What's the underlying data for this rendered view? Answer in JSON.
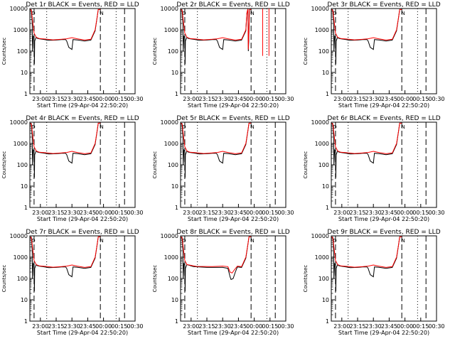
{
  "chart_data": [
    {
      "title": "Det 1r BLACK = Events, RED = LLD",
      "variant": "normal"
    },
    {
      "title": "Det 2r BLACK = Events, RED = LLD",
      "variant": "spike"
    },
    {
      "title": "Det 3r BLACK = Events, RED = LLD",
      "variant": "normal"
    },
    {
      "title": "Det 4r BLACK = Events, RED = LLD",
      "variant": "normal"
    },
    {
      "title": "Det 5r BLACK = Events, RED = LLD",
      "variant": "normal"
    },
    {
      "title": "Det 6r BLACK = Events, RED = LLD",
      "variant": "normal"
    },
    {
      "title": "Det 7r BLACK = Events, RED = LLD",
      "variant": "normal"
    },
    {
      "title": "Det 8r BLACK = Events, RED = LLD",
      "variant": "dip"
    },
    {
      "title": "Det 9r BLACK = Events, RED = LLD",
      "variant": "normal"
    }
  ],
  "shared": {
    "type": "line",
    "xlabel": "Start Time (29-Apr-04 22:50:20)",
    "ylabel": "Counts/sec",
    "yscale": "log",
    "ylim": [
      1,
      10000
    ],
    "y_ticks": [
      "1",
      "10",
      "100",
      "1000",
      "10000"
    ],
    "x_ticks": [
      "23:00",
      "23:15",
      "23:30",
      "23:45",
      "00:00",
      "00:15",
      "00:30"
    ],
    "x_tick_minutes": [
      10,
      25,
      40,
      55,
      70,
      85,
      100
    ],
    "xlim_minutes": [
      0,
      100
    ],
    "series": [
      {
        "name": "Events",
        "color": "#000000"
      },
      {
        "name": "LLD",
        "color": "#ff0000"
      }
    ],
    "event_curve": [
      [
        0.5,
        9000
      ],
      [
        1.5,
        8000
      ],
      [
        2.2,
        2000
      ],
      [
        2.5,
        100
      ],
      [
        3,
        300
      ],
      [
        3.2,
        500
      ],
      [
        4,
        450
      ],
      [
        4.3,
        25
      ],
      [
        4.6,
        300
      ],
      [
        6,
        450
      ],
      [
        7,
        400
      ],
      [
        9,
        380
      ],
      [
        12,
        360
      ],
      [
        18,
        320
      ],
      [
        25,
        330
      ],
      [
        30,
        350
      ],
      [
        34,
        350
      ],
      [
        35,
        300
      ],
      [
        37,
        150
      ],
      [
        40,
        120
      ],
      [
        41,
        350
      ],
      [
        46,
        330
      ],
      [
        52,
        300
      ],
      [
        58,
        330
      ],
      [
        62,
        900
      ],
      [
        64,
        4000
      ],
      [
        65,
        9000
      ],
      [
        66,
        9000
      ],
      [
        67,
        9000
      ]
    ],
    "lld_curve": [
      [
        0.5,
        9000
      ],
      [
        1.5,
        8000
      ],
      [
        2.5,
        3000
      ],
      [
        4,
        700
      ],
      [
        6,
        450
      ],
      [
        9,
        390
      ],
      [
        15,
        370
      ],
      [
        22,
        340
      ],
      [
        30,
        360
      ],
      [
        35,
        380
      ],
      [
        40,
        430
      ],
      [
        45,
        380
      ],
      [
        52,
        330
      ],
      [
        58,
        360
      ],
      [
        62,
        1000
      ],
      [
        64,
        4000
      ],
      [
        65,
        9000
      ],
      [
        66,
        9000
      ],
      [
        67,
        9000
      ]
    ],
    "spike_event_curve": [
      [
        62,
        900
      ],
      [
        63,
        6000
      ],
      [
        64,
        9500
      ],
      [
        64.4,
        100
      ],
      [
        64.8,
        300
      ],
      [
        65.5,
        9000
      ],
      [
        67,
        9000
      ]
    ],
    "spike_lld_curve": [
      [
        62,
        1000
      ],
      [
        63,
        6000
      ],
      [
        64,
        9500
      ],
      [
        64.4,
        120
      ],
      [
        64.8,
        500
      ],
      [
        65.5,
        9000
      ],
      [
        67,
        9000
      ]
    ],
    "spike_extra_red": [
      [
        78,
        10000
      ],
      [
        78,
        60
      ],
      [
        84,
        10000
      ],
      [
        84,
        60
      ]
    ],
    "dip_event_curve": [
      [
        0.5,
        9000
      ],
      [
        1.5,
        8000
      ],
      [
        2.2,
        2000
      ],
      [
        2.5,
        100
      ],
      [
        3,
        300
      ],
      [
        3.2,
        500
      ],
      [
        4,
        450
      ],
      [
        4.3,
        25
      ],
      [
        4.6,
        300
      ],
      [
        6,
        450
      ],
      [
        12,
        360
      ],
      [
        25,
        330
      ],
      [
        40,
        330
      ],
      [
        45,
        300
      ],
      [
        47,
        120
      ],
      [
        48,
        90
      ],
      [
        50,
        100
      ],
      [
        52,
        200
      ],
      [
        54,
        350
      ],
      [
        58,
        330
      ],
      [
        62,
        900
      ],
      [
        64,
        4000
      ],
      [
        65,
        9000
      ],
      [
        67,
        9000
      ]
    ],
    "dip_lld_curve": [
      [
        0.5,
        9000
      ],
      [
        1.5,
        8000
      ],
      [
        2.5,
        3000
      ],
      [
        4,
        700
      ],
      [
        6,
        450
      ],
      [
        15,
        370
      ],
      [
        30,
        360
      ],
      [
        40,
        380
      ],
      [
        45,
        360
      ],
      [
        47,
        200
      ],
      [
        49,
        180
      ],
      [
        51,
        250
      ],
      [
        54,
        380
      ],
      [
        58,
        360
      ],
      [
        62,
        1000
      ],
      [
        64,
        4000
      ],
      [
        65,
        9000
      ],
      [
        67,
        9000
      ]
    ],
    "dashed_markers": [
      4,
      67,
      90
    ],
    "dotted_markers": [
      16,
      82
    ],
    "small_labels": [
      "D",
      "N"
    ]
  }
}
